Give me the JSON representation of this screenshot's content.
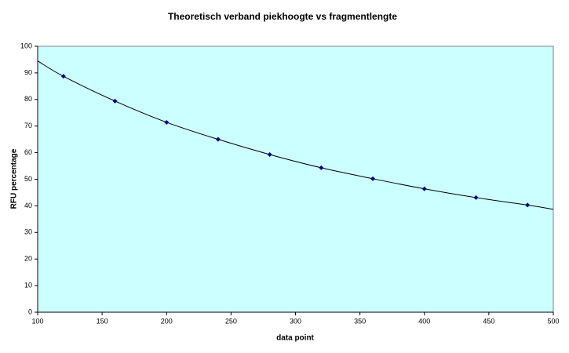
{
  "chart_data": {
    "type": "scatter",
    "title": "Theoretisch verband piekhoogte vs fragmentlengte",
    "xlabel": "data point",
    "ylabel": "RFU percentage",
    "xlim": [
      100,
      500
    ],
    "ylim": [
      0,
      100
    ],
    "xticks": [
      100,
      150,
      200,
      250,
      300,
      350,
      400,
      450,
      500
    ],
    "yticks": [
      0,
      10,
      20,
      30,
      40,
      50,
      60,
      70,
      80,
      90,
      100
    ],
    "background": "#ccffff",
    "series": [
      {
        "color": "#000080",
        "marker": true,
        "x": [
          120,
          160,
          200,
          240,
          280,
          320,
          360,
          400,
          440,
          480
        ],
        "values": [
          88.7,
          79.4,
          71.4,
          65,
          59.3,
          54.3,
          50.2,
          46.4,
          43.1,
          40.3
        ]
      },
      {
        "color": "#000000",
        "marker": false,
        "x": [
          100,
          120,
          160,
          200,
          240,
          280,
          320,
          360,
          400,
          440,
          480,
          500
        ],
        "values": [
          94.5,
          88.7,
          79.4,
          71.4,
          65,
          59.3,
          54.3,
          50.2,
          46.4,
          43.1,
          40.3,
          38.7
        ]
      }
    ]
  }
}
